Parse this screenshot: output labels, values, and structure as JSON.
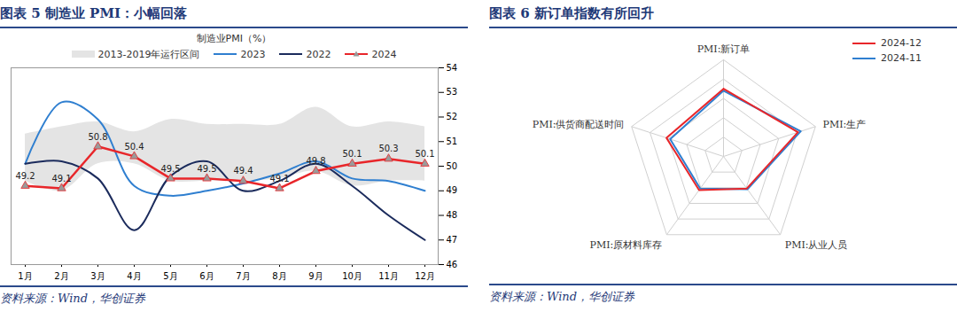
{
  "chart_data": [
    {
      "type": "line",
      "title": "图表 5 制造业 PMI：小幅回落",
      "subtitle": "制造业PMI（%）",
      "source": "资料来源：Wind，华创证券",
      "categories": [
        "1月",
        "2月",
        "3月",
        "4月",
        "5月",
        "6月",
        "7月",
        "8月",
        "9月",
        "10月",
        "11月",
        "12月"
      ],
      "series": [
        {
          "name": "2013-2019年运行区间",
          "type": "area",
          "color": "#e4e4e4",
          "low": [
            49.4,
            49.0,
            50.1,
            50.1,
            49.4,
            49.4,
            49.4,
            49.5,
            49.8,
            49.2,
            49.4,
            49.4
          ],
          "high": [
            51.3,
            51.6,
            51.8,
            51.4,
            51.9,
            51.7,
            51.7,
            51.7,
            52.4,
            51.6,
            51.8,
            51.6
          ]
        },
        {
          "name": "2023",
          "type": "line",
          "color": "#2f7fd0",
          "values": [
            50.1,
            52.6,
            51.9,
            49.2,
            48.8,
            49.0,
            49.3,
            49.7,
            50.2,
            49.5,
            49.4,
            49.0
          ]
        },
        {
          "name": "2022",
          "type": "line",
          "color": "#1b2b5c",
          "values": [
            50.1,
            50.2,
            49.5,
            47.4,
            49.6,
            50.2,
            49.0,
            49.4,
            50.1,
            49.2,
            48.0,
            47.0
          ]
        },
        {
          "name": "2024",
          "type": "line",
          "color": "#e8262a",
          "marker": "triangle",
          "data_labels": true,
          "values": [
            49.2,
            49.1,
            50.8,
            50.4,
            49.5,
            49.5,
            49.4,
            49.1,
            49.8,
            50.1,
            50.3,
            50.1
          ]
        }
      ],
      "ylim": [
        46,
        54
      ],
      "yticks": [
        46,
        47,
        48,
        49,
        50,
        51,
        52,
        53,
        54
      ],
      "grid": false,
      "legend": "top"
    },
    {
      "type": "radar",
      "title": "图表 6 新订单指数有所回升",
      "source": "资料来源：Wind，华创证券",
      "categories": [
        "PMI:新订单",
        "PMI:生产",
        "PMI:从业人员",
        "PMI:原材料库存",
        "PMI:供货商配送时间"
      ],
      "series": [
        {
          "name": "2024-12",
          "color": "#e8262a",
          "values": [
            51.0,
            52.1,
            48.1,
            48.3,
            50.2
          ]
        },
        {
          "name": "2024-11",
          "color": "#2f7fd0",
          "values": [
            50.8,
            52.4,
            48.2,
            48.1,
            49.8
          ]
        }
      ],
      "rlim": [
        44,
        54
      ],
      "rticks": [
        44,
        46,
        48,
        50,
        52,
        54
      ],
      "tick_labels": false,
      "grid": true,
      "legend": "upper right"
    }
  ]
}
